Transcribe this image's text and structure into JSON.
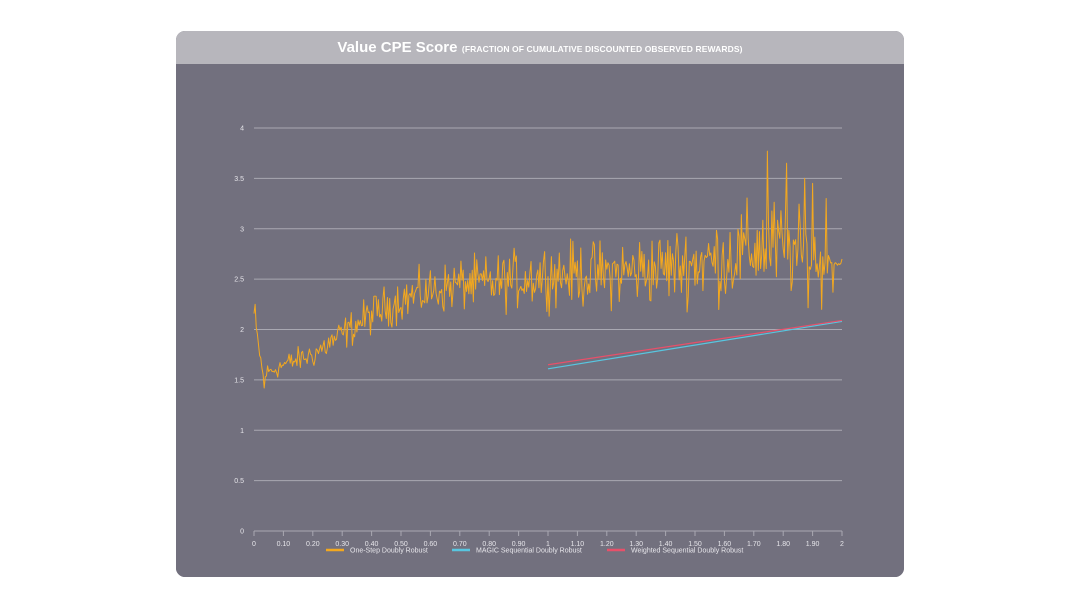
{
  "header": {
    "title": "Value CPE Score",
    "subtitle": "(FRACTION OF CUMULATIVE DISCOUNTED OBSERVED REWARDS)"
  },
  "colors": {
    "card_bg": "#72707e",
    "header_bg": "#b7b6bc",
    "grid": "#a9a8b2",
    "one_step": "#f3a81f",
    "magic": "#58c6e0",
    "weighted": "#e8506a"
  },
  "chart_data": {
    "type": "line",
    "title": "Value CPE Score (FRACTION OF CUMULATIVE DISCOUNTED OBSERVED REWARDS)",
    "xlabel": "",
    "ylabel": "",
    "xlim": [
      0,
      2
    ],
    "ylim": [
      0,
      4
    ],
    "grid": true,
    "legend_position": "bottom",
    "x_tick_labels": [
      "0",
      "0.10",
      "0.20",
      "0.30",
      "0.40",
      "0.50",
      "0.60",
      "0.70",
      "0.80",
      "0.90",
      "1",
      "1.10",
      "1.20",
      "1.30",
      "1.40",
      "1.50",
      "1.60",
      "1.70",
      "1.80",
      "1.90",
      "2"
    ],
    "y_tick_labels": [
      "0",
      "0.5",
      "1",
      "1.5",
      "2",
      "2.5",
      "3",
      "3.5",
      "4"
    ],
    "y_tick_values": [
      0,
      0.5,
      1,
      1.5,
      2,
      2.5,
      3,
      3.5,
      4
    ],
    "series": [
      {
        "name": "One-Step Doubly Robust",
        "color": "#f3a81f",
        "x_start": 0,
        "x_end": 2,
        "trend": [
          [
            0.0,
            2.15
          ],
          [
            0.03,
            1.55
          ],
          [
            0.1,
            1.65
          ],
          [
            0.2,
            1.75
          ],
          [
            0.3,
            1.95
          ],
          [
            0.4,
            2.15
          ],
          [
            0.5,
            2.3
          ],
          [
            0.6,
            2.38
          ],
          [
            0.7,
            2.45
          ],
          [
            0.8,
            2.45
          ],
          [
            0.9,
            2.5
          ],
          [
            1.0,
            2.55
          ],
          [
            1.2,
            2.55
          ],
          [
            1.4,
            2.62
          ],
          [
            1.6,
            2.7
          ],
          [
            1.75,
            2.85
          ],
          [
            1.9,
            2.7
          ],
          [
            2.0,
            2.65
          ]
        ],
        "amplitude": [
          [
            0.0,
            0.08
          ],
          [
            0.2,
            0.12
          ],
          [
            0.4,
            0.18
          ],
          [
            0.8,
            0.25
          ],
          [
            1.2,
            0.3
          ],
          [
            1.5,
            0.35
          ],
          [
            1.75,
            0.45
          ],
          [
            1.9,
            0.35
          ],
          [
            1.96,
            0.05
          ],
          [
            2.0,
            0.02
          ]
        ],
        "peaks": [
          [
            0.005,
            2.25
          ],
          [
            0.035,
            1.42
          ],
          [
            1.745,
            3.77
          ],
          [
            1.81,
            3.65
          ],
          [
            1.875,
            3.5
          ],
          [
            1.9,
            3.45
          ],
          [
            1.93,
            2.2
          ],
          [
            1.945,
            3.3
          ],
          [
            1.97,
            2.37
          ],
          [
            2.0,
            2.7
          ]
        ]
      },
      {
        "name": "MAGIC Sequential Doubly Robust",
        "color": "#58c6e0",
        "x": [
          1.0,
          2.0
        ],
        "values": [
          1.61,
          2.08
        ]
      },
      {
        "name": "Weighted Sequential Doubly Robust",
        "color": "#e8506a",
        "x": [
          1.0,
          2.0
        ],
        "values": [
          1.65,
          2.09
        ]
      }
    ]
  }
}
